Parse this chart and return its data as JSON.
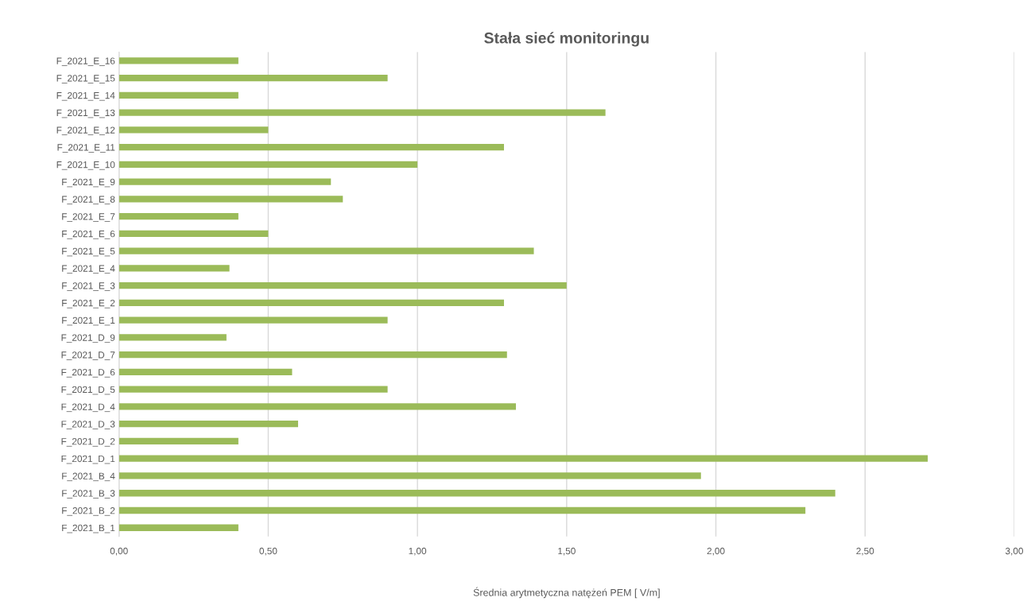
{
  "chart_data": {
    "type": "bar",
    "orientation": "horizontal",
    "title": "Stała sieć monitoringu",
    "xlabel": "Średnia arytmetyczna natężeń PEM [ V/m]",
    "categories": [
      "F_2021_E_16",
      "F_2021_E_15",
      "F_2021_E_14",
      "F_2021_E_13",
      "F_2021_E_12",
      "F_2021_E_11",
      "F_2021_E_10",
      "F_2021_E_9",
      "F_2021_E_8",
      "F_2021_E_7",
      "F_2021_E_6",
      "F_2021_E_5",
      "F_2021_E_4",
      "F_2021_E_3",
      "F_2021_E_2",
      "F_2021_E_1",
      "F_2021_D_9",
      "F_2021_D_7",
      "F_2021_D_6",
      "F_2021_D_5",
      "F_2021_D_4",
      "F_2021_D_3",
      "F_2021_D_2",
      "F_2021_D_1",
      "F_2021_B_4",
      "F_2021_B_3",
      "F_2021_B_2",
      "F_2021_B_1"
    ],
    "values": [
      0.4,
      0.9,
      0.4,
      1.63,
      0.5,
      1.29,
      1.0,
      0.71,
      0.75,
      0.4,
      0.5,
      1.39,
      0.37,
      1.5,
      1.29,
      0.9,
      0.36,
      1.3,
      0.58,
      0.9,
      1.33,
      0.6,
      0.4,
      2.71,
      1.95,
      2.4,
      2.3,
      0.4
    ],
    "color": "#9bbb59",
    "xlim": [
      0,
      3
    ],
    "xticks": [
      {
        "value": 0,
        "label": "0,00"
      },
      {
        "value": 0.5,
        "label": "0,50"
      },
      {
        "value": 1,
        "label": "1,00"
      },
      {
        "value": 1.5,
        "label": "1,50"
      },
      {
        "value": 2,
        "label": "2,00"
      },
      {
        "value": 2.5,
        "label": "2,50"
      },
      {
        "value": 3,
        "label": "3,00"
      }
    ],
    "grid": "x"
  }
}
